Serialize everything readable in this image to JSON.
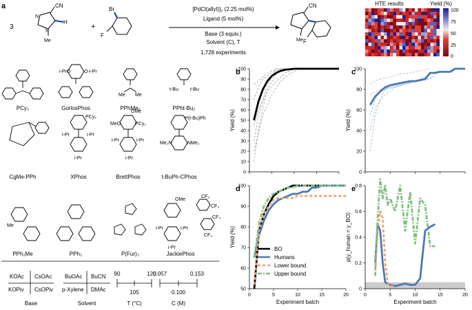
{
  "figure": {
    "panel_a": "a",
    "panel_b": "b",
    "panel_c": "c",
    "panel_d": "d",
    "panel_e": "e",
    "reaction": {
      "stoich_left": "3",
      "plus": "+",
      "nitrile": "CN",
      "methyl": "Me",
      "hydrogen": "H",
      "nitrogen": "N",
      "bromine": "Br",
      "fluorine": "F",
      "catalyst": "[PdCl(allyl)]₂ (2.25 mol%)",
      "ligand": "Ligand (5 mol%)",
      "base": "Base (3 equiv.)",
      "solvent": "Solvent (C), T",
      "experiments": "1,728 experiments"
    },
    "hte": {
      "title": "HTE results",
      "yield_label": "Yield (%)",
      "ticks": [
        "100",
        "75",
        "50",
        "25",
        "0"
      ]
    },
    "ligands": [
      "PCy₃",
      "GorlosPhos",
      "PPhMe₂",
      "PPht-Bu₂",
      "CgMe-PPh",
      "XPhos",
      "BrettPhos",
      "t-BuPh-CPhos",
      "PPh₂Me",
      "PPh₃",
      "P(Fur)₃",
      "JackiePhos"
    ],
    "structure_labels": {
      "i_pro": "i-PrO",
      "o_i_pr": "O-i-Pr",
      "me": "Me",
      "t_bu": "t-Bu",
      "i_pr": "i-Pr",
      "pcy2": "PCy₂",
      "ome": "OMe",
      "meo": "MeO",
      "p_tbu_ph": "P(t-Bu)Ph",
      "nme2": "NMe₂",
      "me2n": "Me₂N",
      "cf3": "CF₃",
      "p": "P"
    },
    "conditions": {
      "base_items": [
        "KOAc",
        "CsOAc",
        "KOPiv",
        "CsOPiv"
      ],
      "base_label": "Base",
      "solvent_items": [
        "BuOAc",
        "BuCN",
        "p-Xylene",
        "DMAc"
      ],
      "solvent_label": "Solvent",
      "temp_ticks": [
        "90",
        "120",
        "105"
      ],
      "temp_label": "T (°C)",
      "conc_ticks": [
        "0.057",
        "0.153",
        "0.100"
      ],
      "conc_label": "C (M)"
    },
    "legend": [
      "BO",
      "Humans",
      "Lower bound",
      "Upper bound"
    ]
  },
  "chart_data": [
    {
      "id": "b",
      "type": "line",
      "xlabel": "",
      "ylabel": "Yield (%)",
      "xlim": [
        0,
        20
      ],
      "ylim": [
        0,
        100
      ],
      "yticks": [
        0,
        10,
        20,
        30,
        40,
        50,
        60,
        70,
        80,
        90,
        100
      ],
      "series": [
        {
          "role": "mean",
          "color": "#000000",
          "x": [
            1,
            2,
            3,
            4,
            5,
            6,
            7,
            8,
            9,
            10,
            12,
            14,
            16,
            18,
            20
          ],
          "y": [
            50,
            68,
            80,
            88,
            93,
            96,
            98,
            99,
            99.5,
            100,
            100,
            100,
            100,
            100,
            100
          ]
        },
        {
          "role": "run",
          "color": "#888888",
          "x": [
            1,
            2,
            3,
            4,
            5,
            6,
            8,
            10,
            20
          ],
          "y": [
            30,
            55,
            70,
            85,
            92,
            100,
            100,
            100,
            100
          ]
        },
        {
          "role": "run",
          "color": "#888888",
          "x": [
            1,
            2,
            3,
            4,
            6,
            8,
            10,
            20
          ],
          "y": [
            10,
            40,
            62,
            80,
            95,
            100,
            100,
            100
          ]
        },
        {
          "role": "run",
          "color": "#888888",
          "x": [
            1,
            2,
            3,
            5,
            7,
            9,
            20
          ],
          "y": [
            70,
            82,
            90,
            96,
            100,
            100,
            100
          ]
        },
        {
          "role": "run",
          "color": "#888888",
          "x": [
            1,
            2,
            4,
            6,
            8,
            10,
            20
          ],
          "y": [
            45,
            60,
            78,
            88,
            96,
            100,
            100
          ]
        },
        {
          "role": "run",
          "color": "#888888",
          "x": [
            1,
            2,
            3,
            4,
            5,
            7,
            20
          ],
          "y": [
            85,
            88,
            92,
            95,
            98,
            100,
            100
          ]
        },
        {
          "role": "run",
          "color": "#888888",
          "x": [
            1,
            3,
            5,
            7,
            9,
            11,
            20
          ],
          "y": [
            20,
            55,
            75,
            88,
            95,
            100,
            100
          ]
        }
      ]
    },
    {
      "id": "c",
      "type": "line",
      "xlabel": "",
      "ylabel": "Yield (%)",
      "xlim": [
        0,
        20
      ],
      "ylim": [
        0,
        100
      ],
      "yticks": [
        0,
        20,
        40,
        60,
        80,
        100
      ],
      "series": [
        {
          "role": "mean",
          "color": "#4a78b5",
          "x": [
            1,
            2,
            3,
            4,
            5,
            6,
            7,
            8,
            9,
            10,
            11,
            12,
            13,
            14,
            15,
            16,
            17,
            18,
            19,
            20
          ],
          "y": [
            65,
            73,
            78,
            82,
            84,
            85,
            86,
            87,
            88,
            88,
            89,
            90,
            96,
            96,
            97,
            97,
            97,
            100,
            100,
            100
          ]
        },
        {
          "role": "run",
          "color": "#7fa3d4",
          "x": [
            1,
            2,
            3,
            4,
            6,
            8,
            10,
            12,
            14
          ],
          "y": [
            20,
            55,
            70,
            80,
            82,
            85,
            88,
            90,
            92
          ]
        },
        {
          "role": "run",
          "color": "#7fa3d4",
          "x": [
            1,
            2,
            3,
            5,
            7,
            9,
            11,
            13
          ],
          "y": [
            85,
            88,
            90,
            92,
            95,
            96,
            98,
            100
          ]
        },
        {
          "role": "run",
          "color": "#7fa3d4",
          "x": [
            1,
            2,
            4,
            6,
            8,
            10,
            12
          ],
          "y": [
            40,
            62,
            75,
            82,
            85,
            88,
            92
          ]
        },
        {
          "role": "run",
          "color": "#7fa3d4",
          "x": [
            1,
            3,
            5,
            7,
            9,
            11,
            13,
            15
          ],
          "y": [
            75,
            80,
            82,
            84,
            86,
            88,
            90,
            100
          ]
        },
        {
          "role": "run",
          "color": "#7fa3d4",
          "x": [
            1,
            2,
            3,
            4,
            5,
            6,
            8,
            10
          ],
          "y": [
            55,
            70,
            78,
            80,
            82,
            84,
            86,
            88
          ]
        }
      ]
    },
    {
      "id": "d",
      "type": "line",
      "xlabel": "Experiment batch",
      "ylabel": "Yield (%)",
      "xlim": [
        0,
        20
      ],
      "ylim": [
        50,
        100
      ],
      "xticks": [
        0,
        5,
        10,
        15,
        20
      ],
      "yticks": [
        50,
        60,
        70,
        80,
        90,
        100
      ],
      "series": [
        {
          "name": "BO",
          "color": "#000000",
          "dash": "",
          "x": [
            1,
            2,
            3,
            4,
            5,
            6,
            7,
            8,
            9,
            10,
            12,
            14,
            16,
            18,
            20
          ],
          "y": [
            50,
            78,
            86,
            91,
            95,
            97,
            98,
            99,
            100,
            100,
            100,
            100,
            100,
            100,
            100
          ]
        },
        {
          "name": "Humans",
          "color": "#4a78b5",
          "dash": "",
          "x": [
            1,
            2,
            3,
            4,
            5,
            6,
            7,
            8,
            9,
            10,
            11,
            12,
            13,
            14,
            15,
            16,
            17,
            18,
            19,
            20
          ],
          "y": [
            65,
            76,
            83,
            88,
            91,
            93,
            94,
            95,
            96,
            96,
            97,
            97,
            99,
            99,
            100,
            100,
            100,
            100,
            100,
            100
          ]
        },
        {
          "name": "Lower bound",
          "color": "#f0a070",
          "dash": "4,3",
          "x": [
            1,
            2,
            3,
            4,
            5,
            6,
            7,
            8,
            9,
            10,
            12,
            14,
            16,
            18,
            20
          ],
          "y": [
            52,
            78,
            86,
            90,
            93,
            94,
            94,
            94,
            94,
            95,
            95,
            95,
            95,
            95,
            95
          ]
        },
        {
          "name": "Upper bound",
          "color": "#7fbf7f",
          "dash": "6,2,2,2",
          "x": [
            1,
            2,
            3,
            4,
            5,
            6,
            7,
            8,
            9,
            10,
            12,
            14,
            16,
            18,
            20
          ],
          "y": [
            65,
            82,
            90,
            94,
            96,
            97,
            98,
            99,
            99,
            100,
            100,
            100,
            100,
            100,
            100
          ]
        }
      ]
    },
    {
      "id": "e",
      "type": "line",
      "xlabel": "Experiment batch",
      "ylabel": "p(y_human = y_BO)",
      "xlim": [
        0,
        20
      ],
      "ylim": [
        0,
        0.8
      ],
      "xticks": [
        0,
        5,
        10,
        15,
        20
      ],
      "yticks": [
        0,
        0.2,
        0.4,
        0.6,
        0.8
      ],
      "yticklabels": [
        "0",
        "0.2",
        "0.4",
        "0.6",
        "0.8"
      ],
      "series": [
        {
          "name": "Humans",
          "color": "#4a78b5",
          "dash": "",
          "x": [
            2,
            2.5,
            3,
            3.5,
            4,
            5,
            6,
            7,
            8,
            9,
            10,
            11,
            12,
            13,
            14
          ],
          "y": [
            0.2,
            0.5,
            0.45,
            0.2,
            0.05,
            0.03,
            0.02,
            0.03,
            0.04,
            0.03,
            0.03,
            0.08,
            0.45,
            0.48,
            0.5
          ]
        },
        {
          "name": "Lower bound",
          "color": "#f0a070",
          "dash": "4,3",
          "x": [
            2,
            2.5,
            3,
            3.5,
            4,
            4.5,
            5,
            6
          ],
          "y": [
            0.15,
            0.45,
            0.6,
            0.55,
            0.2,
            0.05,
            0.02,
            0.02
          ]
        },
        {
          "name": "Upper bound",
          "color": "#7fbf7f",
          "dash": "6,2,2,2",
          "x": [
            2,
            2.5,
            3,
            3.5,
            4,
            4.5,
            5,
            6,
            7,
            8,
            9,
            10,
            11,
            12,
            13,
            14
          ],
          "y": [
            0.1,
            0.55,
            0.85,
            0.7,
            0.8,
            0.65,
            0.7,
            0.6,
            0.8,
            0.45,
            0.75,
            0.35,
            0.7,
            0.65,
            0.33,
            0.33
          ]
        }
      ]
    }
  ]
}
